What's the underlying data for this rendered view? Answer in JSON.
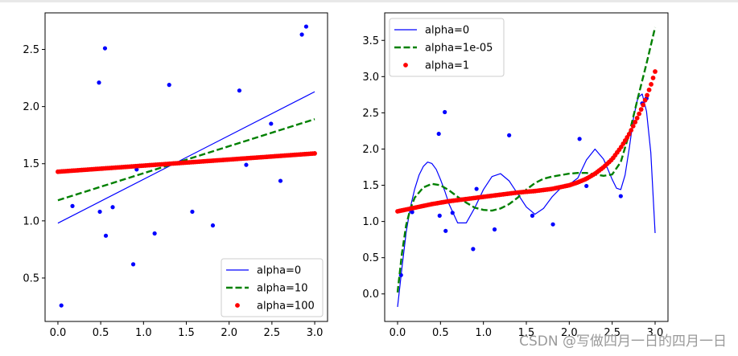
{
  "watermark": "CSDN @写做四月一日的四月一日",
  "chart_data": [
    {
      "type": "scatter",
      "xlim": [
        -0.15,
        3.15
      ],
      "ylim": [
        0.12,
        2.82
      ],
      "xticks": [
        "0.0",
        "0.5",
        "1.0",
        "1.5",
        "2.0",
        "2.5",
        "3.0"
      ],
      "yticks": [
        "0.5",
        "1.0",
        "1.5",
        "2.0",
        "2.5"
      ],
      "legend_position": "lower right",
      "grid": false,
      "points": {
        "color": "#0000ff",
        "x": [
          0.04,
          0.17,
          0.48,
          0.49,
          0.55,
          0.56,
          0.64,
          0.88,
          0.92,
          1.13,
          1.3,
          1.57,
          1.81,
          2.12,
          2.2,
          2.49,
          2.6,
          2.85,
          2.9
        ],
        "y": [
          0.26,
          1.13,
          2.21,
          1.08,
          2.51,
          0.87,
          1.12,
          0.62,
          1.45,
          0.89,
          2.19,
          1.08,
          0.96,
          2.14,
          1.49,
          1.85,
          1.35,
          2.63,
          2.7
        ]
      },
      "series": [
        {
          "name": "alpha=0",
          "style": "solid",
          "color": "#0000ff",
          "x": [
            0,
            3
          ],
          "y": [
            0.98,
            2.13
          ]
        },
        {
          "name": "alpha=10",
          "style": "dashed",
          "color": "#008000",
          "x": [
            0,
            3
          ],
          "y": [
            1.18,
            1.89
          ]
        },
        {
          "name": "alpha=100",
          "style": "dots",
          "color": "#ff0000",
          "x": [
            0,
            3
          ],
          "y": [
            1.43,
            1.59
          ]
        }
      ]
    },
    {
      "type": "line",
      "xlim": [
        -0.15,
        3.15
      ],
      "ylim": [
        -0.38,
        3.88
      ],
      "xticks": [
        "0.0",
        "0.5",
        "1.0",
        "1.5",
        "2.0",
        "2.5",
        "3.0"
      ],
      "yticks": [
        "0.0",
        "0.5",
        "1.0",
        "1.5",
        "2.0",
        "2.5",
        "3.0",
        "3.5"
      ],
      "legend_position": "upper left",
      "grid": false,
      "points": {
        "color": "#0000ff",
        "x": [
          0.04,
          0.17,
          0.48,
          0.49,
          0.55,
          0.56,
          0.64,
          0.88,
          0.92,
          1.13,
          1.3,
          1.57,
          1.81,
          2.12,
          2.2,
          2.49,
          2.6,
          2.85,
          2.9
        ],
        "y": [
          0.26,
          1.13,
          2.21,
          1.08,
          2.51,
          0.87,
          1.12,
          0.62,
          1.45,
          0.89,
          2.19,
          1.08,
          0.96,
          2.14,
          1.49,
          1.85,
          1.35,
          2.63,
          2.7
        ]
      },
      "series": [
        {
          "name": "alpha=0",
          "style": "solid",
          "color": "#0000ff",
          "x": [
            0.0,
            0.05,
            0.1,
            0.15,
            0.2,
            0.25,
            0.3,
            0.35,
            0.4,
            0.45,
            0.5,
            0.55,
            0.6,
            0.7,
            0.8,
            0.9,
            1.0,
            1.1,
            1.2,
            1.3,
            1.4,
            1.5,
            1.6,
            1.7,
            1.8,
            1.9,
            2.0,
            2.1,
            2.2,
            2.3,
            2.4,
            2.5,
            2.55,
            2.6,
            2.65,
            2.7,
            2.75,
            2.8,
            2.85,
            2.9,
            2.95,
            3.0
          ],
          "y": [
            -0.18,
            0.35,
            0.85,
            1.2,
            1.45,
            1.64,
            1.76,
            1.82,
            1.8,
            1.72,
            1.58,
            1.42,
            1.24,
            0.98,
            0.98,
            1.19,
            1.44,
            1.62,
            1.66,
            1.56,
            1.38,
            1.2,
            1.1,
            1.18,
            1.34,
            1.46,
            1.51,
            1.6,
            1.85,
            2.0,
            1.86,
            1.58,
            1.46,
            1.44,
            1.64,
            2.02,
            2.44,
            2.71,
            2.76,
            2.52,
            1.95,
            0.84
          ]
        },
        {
          "name": "alpha=1e-05",
          "style": "dashed",
          "color": "#008000",
          "x": [
            0.0,
            0.05,
            0.1,
            0.15,
            0.2,
            0.3,
            0.4,
            0.5,
            0.6,
            0.7,
            0.8,
            0.9,
            1.0,
            1.1,
            1.2,
            1.3,
            1.4,
            1.5,
            1.6,
            1.7,
            1.8,
            1.9,
            2.0,
            2.1,
            2.2,
            2.3,
            2.4,
            2.5,
            2.6,
            2.7,
            2.8,
            2.9,
            3.0
          ],
          "y": [
            0.02,
            0.55,
            0.95,
            1.18,
            1.33,
            1.47,
            1.52,
            1.5,
            1.43,
            1.34,
            1.26,
            1.19,
            1.16,
            1.15,
            1.18,
            1.24,
            1.33,
            1.44,
            1.53,
            1.59,
            1.62,
            1.64,
            1.66,
            1.67,
            1.67,
            1.65,
            1.63,
            1.65,
            1.82,
            2.22,
            2.71,
            3.18,
            3.68
          ]
        },
        {
          "name": "alpha=1",
          "style": "dots",
          "color": "#ff0000",
          "x": [
            0.0,
            0.2,
            0.4,
            0.6,
            0.8,
            1.0,
            1.2,
            1.4,
            1.6,
            1.8,
            2.0,
            2.1,
            2.2,
            2.3,
            2.4,
            2.5,
            2.6,
            2.7,
            2.75,
            2.8,
            2.85,
            2.9,
            2.95,
            3.0
          ],
          "y": [
            1.14,
            1.19,
            1.24,
            1.28,
            1.31,
            1.34,
            1.37,
            1.4,
            1.42,
            1.45,
            1.5,
            1.54,
            1.59,
            1.66,
            1.75,
            1.86,
            2.02,
            2.21,
            2.33,
            2.45,
            2.58,
            2.72,
            2.88,
            3.07
          ]
        }
      ]
    }
  ]
}
